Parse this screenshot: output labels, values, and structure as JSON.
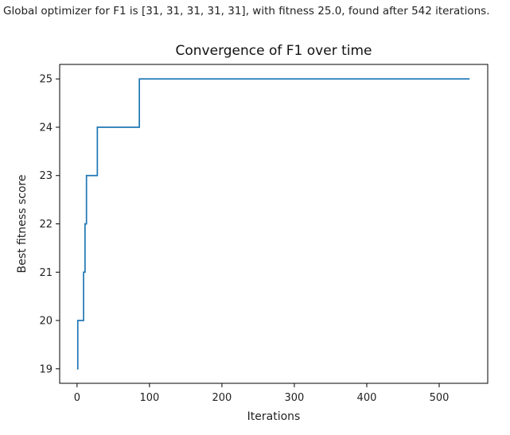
{
  "output": {
    "text": "Global optimizer for F1 is [31, 31, 31, 31, 31], with fitness 25.0, found after 542 iterations."
  },
  "chart_data": {
    "type": "line",
    "title": "Convergence of F1 over time",
    "xlabel": "Iterations",
    "ylabel": "Best fitness score",
    "xlim": [
      -24,
      567
    ],
    "ylim": [
      18.7,
      25.3
    ],
    "xticks": [
      0,
      100,
      200,
      300,
      400,
      500
    ],
    "yticks": [
      19,
      20,
      21,
      22,
      23,
      24,
      25
    ],
    "grid": false,
    "line_color": "#1f77b4",
    "series": [
      {
        "x": [
          0,
          1,
          1,
          9,
          9,
          11,
          11,
          13,
          13,
          28,
          28,
          86,
          86,
          542
        ],
        "y": [
          19,
          19,
          20,
          20,
          21,
          21,
          22,
          22,
          23,
          23,
          24,
          24,
          25,
          25
        ]
      }
    ]
  }
}
